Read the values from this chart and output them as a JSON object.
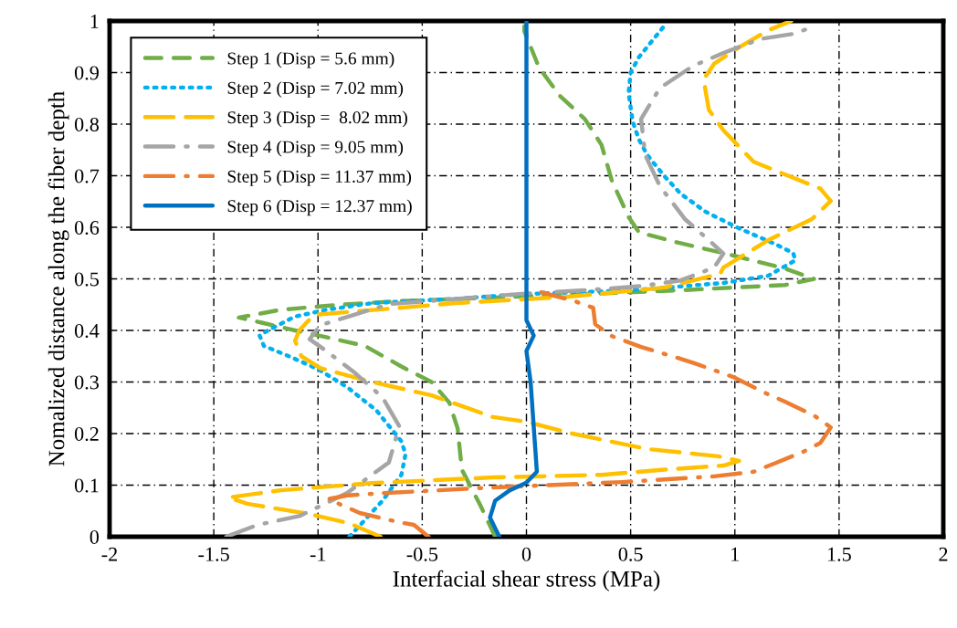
{
  "chart_data": {
    "type": "line",
    "xlabel": "Interfacial shear stress (MPa)",
    "ylabel": "Nomalized distance along the fiber depth",
    "xlim": [
      -2,
      2
    ],
    "ylim": [
      0,
      1
    ],
    "xticks": [
      {
        "value": -2,
        "label": "-2"
      },
      {
        "value": -1.5,
        "label": "-1.5"
      },
      {
        "value": -1,
        "label": "-1"
      },
      {
        "value": -0.5,
        "label": "-0.5"
      },
      0,
      0.5,
      1,
      1.5,
      2
    ],
    "yticks": [
      0,
      0.1,
      0.2,
      0.3,
      0.4,
      0.5,
      0.6,
      0.7,
      0.8,
      0.9,
      1
    ],
    "grid": true,
    "legend": "top left",
    "series": [
      {
        "name": "Step 1 (Disp = 5.6 mm)",
        "color": "#70ad47",
        "line_style": "dashed",
        "x": [
          -0.15,
          -0.22,
          -0.31,
          -0.33,
          -0.37,
          -0.455,
          -0.6,
          -0.775,
          -0.94,
          -1.11,
          -1.27,
          -1.38,
          -1.18,
          -0.89,
          -0.6,
          -0.07,
          0.74,
          1.24,
          1.38,
          1.24,
          0.945,
          0.73,
          0.54,
          0.49,
          0.41,
          0.36,
          0.28,
          0.16,
          0.06,
          -0.01,
          -0.01
        ],
        "values": [
          0,
          0.06,
          0.13,
          0.21,
          0.26,
          0.3,
          0.33,
          0.37,
          0.385,
          0.4,
          0.415,
          0.425,
          0.44,
          0.45,
          0.457,
          0.465,
          0.478,
          0.488,
          0.5,
          0.52,
          0.55,
          0.57,
          0.59,
          0.62,
          0.69,
          0.76,
          0.81,
          0.855,
          0.91,
          0.98,
          0.99
        ]
      },
      {
        "name": "Step 2 (Disp = 7.02 mm)",
        "color": "#00b0f0",
        "line_style": "dotted",
        "x": [
          -0.85,
          -0.79,
          -0.69,
          -0.6,
          -0.58,
          -0.6,
          -0.63,
          -0.72,
          -0.86,
          -1.0,
          -1.14,
          -1.26,
          -1.28,
          -1.24,
          -1.11,
          -0.96,
          -0.74,
          -0.31,
          -0.04,
          0.51,
          0.945,
          1.16,
          1.29,
          1.28,
          1.19,
          1.02,
          0.86,
          0.74,
          0.66,
          0.58,
          0.54,
          0.51,
          0.49,
          0.5,
          0.54,
          0.6,
          0.66
        ],
        "values": [
          0,
          0.026,
          0.07,
          0.12,
          0.16,
          0.185,
          0.2,
          0.245,
          0.29,
          0.325,
          0.35,
          0.37,
          0.39,
          0.4,
          0.427,
          0.44,
          0.453,
          0.462,
          0.47,
          0.478,
          0.492,
          0.506,
          0.536,
          0.55,
          0.568,
          0.598,
          0.63,
          0.665,
          0.7,
          0.74,
          0.77,
          0.805,
          0.86,
          0.9,
          0.93,
          0.96,
          0.99
        ]
      },
      {
        "name": "Step 3 (Disp =  8.02 mm)",
        "color": "#ffc000",
        "line_style": "longdash",
        "x": [
          -0.7,
          -0.85,
          -1.04,
          -1.34,
          -1.43,
          -1.18,
          -0.74,
          -0.16,
          0.36,
          0.66,
          0.945,
          1.02,
          0.92,
          0.58,
          0.22,
          0,
          -0.16,
          -0.455,
          -0.74,
          -0.99,
          -1.08,
          -1.11,
          -1.09,
          -1.02,
          -0.85,
          -0.6,
          -0.34,
          0.19,
          0.66,
          0.93,
          0.945,
          1.16,
          1.37,
          1.46,
          1.41,
          1.28,
          1.09,
          0.945,
          0.875,
          0.85,
          0.9,
          1.02,
          1.16,
          1.27
        ],
        "values": [
          0,
          0.026,
          0.044,
          0.064,
          0.076,
          0.09,
          0.104,
          0.115,
          0.12,
          0.13,
          0.138,
          0.147,
          0.156,
          0.17,
          0.2,
          0.223,
          0.232,
          0.274,
          0.3,
          0.327,
          0.35,
          0.38,
          0.4,
          0.43,
          0.436,
          0.444,
          0.453,
          0.465,
          0.483,
          0.51,
          0.522,
          0.575,
          0.616,
          0.651,
          0.675,
          0.696,
          0.727,
          0.788,
          0.828,
          0.887,
          0.917,
          0.949,
          0.982,
          1.0
        ]
      },
      {
        "name": "Step 4 (Disp = 9.05 mm)",
        "color": "#a5a5a5",
        "line_style": "dashdot",
        "x": [
          -1.44,
          -1.29,
          -1.09,
          -0.86,
          -0.66,
          -0.61,
          -0.69,
          -0.83,
          -0.96,
          -1.04,
          -0.99,
          -0.83,
          -0.66,
          -0.31,
          -0.02,
          0.36,
          0.55,
          0.74,
          0.9,
          0.945,
          0.875,
          0.76,
          0.64,
          0.57,
          0.55,
          0.64,
          0.8,
          0.945,
          1.12,
          1.28,
          1.37
        ],
        "values": [
          0,
          0.023,
          0.04,
          0.085,
          0.144,
          0.214,
          0.27,
          0.32,
          0.36,
          0.383,
          0.41,
          0.43,
          0.451,
          0.462,
          0.471,
          0.48,
          0.486,
          0.497,
          0.522,
          0.549,
          0.575,
          0.616,
          0.68,
          0.74,
          0.81,
          0.87,
          0.913,
          0.938,
          0.965,
          0.975,
          0.988
        ]
      },
      {
        "name": "Step 5 (Disp = 11.37 mm)",
        "color": "#ed7d31",
        "line_style": "dashdot",
        "x": [
          -0.47,
          -0.54,
          -0.61,
          -0.8,
          -0.89,
          -0.95,
          -0.86,
          -0.67,
          -0.42,
          -0.24,
          -0.07,
          0.46,
          0.9,
          1.09,
          1.19,
          1.33,
          1.41,
          1.46,
          1.38,
          1.24,
          1.15,
          0.99,
          0.83,
          0.74,
          0.55,
          0.41,
          0.33,
          0.32,
          0.23,
          0.07
        ],
        "values": [
          0,
          0.023,
          0.028,
          0.046,
          0.062,
          0.073,
          0.08,
          0.085,
          0.09,
          0.094,
          0.097,
          0.106,
          0.117,
          0.126,
          0.142,
          0.165,
          0.182,
          0.212,
          0.235,
          0.262,
          0.278,
          0.31,
          0.333,
          0.345,
          0.368,
          0.389,
          0.412,
          0.444,
          0.457,
          0.474
        ]
      },
      {
        "name": "Step 6 (Disp = 12.37 mm)",
        "color": "#0070c0",
        "line_style": "solid",
        "x": [
          -0.13,
          -0.175,
          -0.15,
          -0.08,
          0.0,
          0.05,
          0.02,
          0.0,
          0.035,
          0.0,
          0.0
        ],
        "values": [
          0,
          0.037,
          0.07,
          0.09,
          0.105,
          0.126,
          0.3,
          0.36,
          0.39,
          0.42,
          1.0
        ]
      }
    ]
  }
}
